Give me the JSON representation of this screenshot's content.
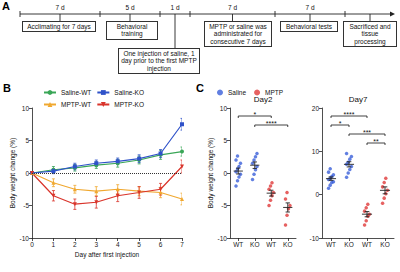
{
  "diagram": {
    "panel_label": "A",
    "steps": [
      {
        "duration": "7 d",
        "label": "Acclimating for 7 days"
      },
      {
        "duration": "5 d",
        "label": "Behavioral training"
      },
      {
        "duration": "1 d",
        "label": "One injection of saline, 1 day prior to the first MPTP injection"
      },
      {
        "duration": "7 d",
        "label": "MPTP or saline was administrated for consecutive 7 days"
      },
      {
        "duration": "7 d",
        "label": "Behavioral tests"
      },
      {
        "label": "Sacrificed and tissue processing"
      }
    ]
  },
  "chart_data": [
    {
      "type": "line",
      "panel_label": "B",
      "x_label": "Day after first injection",
      "y_label": "Body weight change (%)",
      "x": [
        0,
        1,
        2,
        3,
        4,
        5,
        6,
        7
      ],
      "xlim": [
        0,
        7
      ],
      "xticks": [
        0,
        1,
        2,
        3,
        4,
        5,
        6,
        7
      ],
      "ylim": [
        -10,
        10
      ],
      "yticks": [
        -10,
        -5,
        0,
        5,
        10
      ],
      "hline": 0,
      "grid": false,
      "legend": "top-left",
      "series": [
        {
          "name": "Saline-WT",
          "color": "#3aa657",
          "marker": "circle",
          "values": [
            0,
            0.5,
            0.8,
            1.2,
            1.5,
            2.0,
            2.8,
            3.3
          ],
          "errors": [
            0,
            0.5,
            0.5,
            0.5,
            0.6,
            0.6,
            0.7,
            0.7
          ]
        },
        {
          "name": "Saline-KO",
          "color": "#2f52c9",
          "marker": "square",
          "values": [
            0,
            0.3,
            1.0,
            1.5,
            1.8,
            2.2,
            3.0,
            7.5
          ],
          "errors": [
            0,
            0.4,
            0.5,
            0.5,
            0.5,
            0.6,
            0.6,
            0.9
          ]
        },
        {
          "name": "MPTP-WT",
          "color": "#f0a830",
          "marker": "triangle",
          "values": [
            0,
            -1.5,
            -2.5,
            -2.8,
            -2.5,
            -2.8,
            -3.0,
            -4.0
          ],
          "errors": [
            0,
            0.6,
            0.6,
            0.7,
            0.7,
            0.7,
            0.8,
            0.9
          ]
        },
        {
          "name": "MPTP-KO",
          "color": "#d9342b",
          "marker": "triangle-down",
          "values": [
            0,
            -3.5,
            -4.8,
            -4.5,
            -3.5,
            -3.0,
            -2.5,
            1.0
          ],
          "errors": [
            0,
            0.8,
            0.8,
            0.9,
            0.9,
            0.9,
            0.9,
            1.0
          ]
        }
      ]
    },
    {
      "type": "scatter",
      "panel_label": "C",
      "title": "Day2",
      "y_label": "Body weight change (%)",
      "categories": [
        "WT",
        "KO",
        "WT",
        "KO"
      ],
      "ylim": [
        -10,
        10
      ],
      "yticks": [
        -10,
        -5,
        0,
        5,
        10
      ],
      "grid": false,
      "legend": "top-left",
      "series": [
        {
          "name": "Saline",
          "color": "#3a5fd9",
          "marker": "circle",
          "points": [
            [
              -2.0,
              -1.2,
              -0.6,
              -0.2,
              0.2,
              0.6,
              1.0,
              1.5,
              2.0,
              2.6
            ],
            [
              -1.0,
              -0.2,
              0.5,
              1.0,
              1.5,
              2.0,
              2.5,
              3.0
            ],
            null,
            null
          ],
          "means": [
            0.3,
            1.2,
            null,
            null
          ],
          "errors": [
            0.45,
            0.5,
            null,
            null
          ]
        },
        {
          "name": "MPTP",
          "color": "#e03a3a",
          "marker": "circle",
          "points": [
            null,
            null,
            [
              -5.0,
              -4.2,
              -3.5,
              -3.0,
              -2.5,
              -2.0,
              -1.5
            ],
            [
              -8.0,
              -6.5,
              -5.5,
              -5.0,
              -4.0,
              -3.0
            ]
          ],
          "means": [
            null,
            null,
            -3.1,
            -5.3
          ],
          "errors": [
            null,
            null,
            0.45,
            0.7
          ]
        }
      ],
      "comparisons": [
        {
          "from": 0,
          "to": 2,
          "label": "*"
        },
        {
          "from": 1,
          "to": 3,
          "label": "****"
        }
      ]
    },
    {
      "type": "scatter",
      "title": "Day7",
      "categories": [
        "WT",
        "KO",
        "WT",
        "KO"
      ],
      "ylim": [
        -10,
        20
      ],
      "yticks": [
        -10,
        0,
        10,
        20
      ],
      "grid": false,
      "series": [
        {
          "name": "Saline",
          "color": "#3a5fd9",
          "marker": "circle",
          "points": [
            [
              1.5,
              2.2,
              2.8,
              3.0,
              3.5,
              3.8,
              4.2,
              4.6,
              5.2,
              6.0
            ],
            [
              4.0,
              5.0,
              5.8,
              6.5,
              7.0,
              7.5,
              8.2,
              8.8,
              9.5
            ],
            null,
            null
          ],
          "means": [
            3.7,
            7.0,
            null,
            null
          ],
          "errors": [
            0.4,
            0.6,
            null,
            null
          ]
        },
        {
          "name": "MPTP",
          "color": "#e03a3a",
          "marker": "circle",
          "points": [
            null,
            null,
            [
              -7.0,
              -6.0,
              -5.0,
              -4.5,
              -3.8,
              -3.0,
              -2.2
            ],
            [
              -2.0,
              -0.8,
              0.2,
              1.0,
              1.8,
              2.8,
              3.8
            ]
          ],
          "means": [
            null,
            null,
            -4.5,
            1.0
          ],
          "errors": [
            null,
            null,
            0.6,
            0.8
          ]
        }
      ],
      "comparisons": [
        {
          "from": 0,
          "to": 2,
          "label": "****"
        },
        {
          "from": 0,
          "to": 1,
          "label": "*"
        },
        {
          "from": 1,
          "to": 3,
          "label": "***"
        },
        {
          "from": 2,
          "to": 3,
          "label": "**"
        }
      ]
    }
  ]
}
